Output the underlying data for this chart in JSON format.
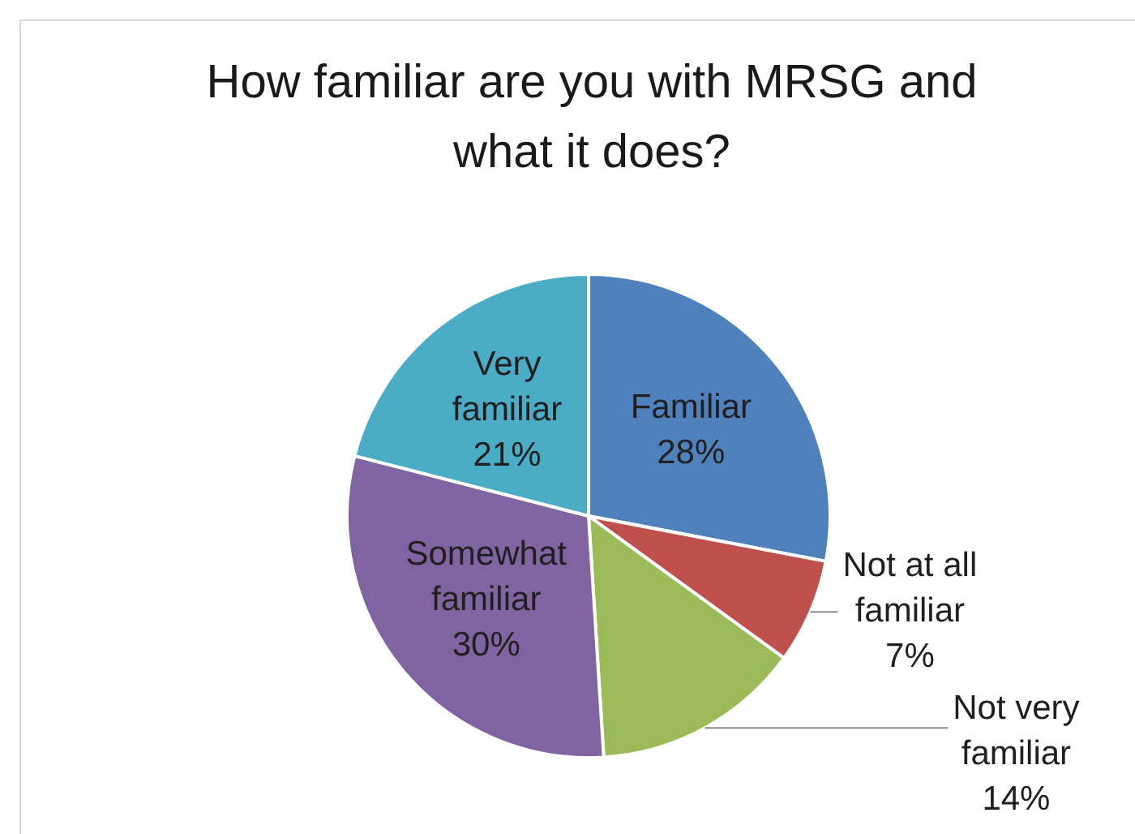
{
  "chart_data": {
    "type": "pie",
    "title": "How familiar are you with MRSG and what it does?",
    "categories": [
      "Familiar",
      "Not at all familiar",
      "Not very familiar",
      "Somewhat familiar",
      "Very familiar"
    ],
    "values": [
      28,
      7,
      14,
      30,
      21
    ],
    "colors": [
      "#4f81bd",
      "#c0504d",
      "#9bbb59",
      "#8064a2",
      "#4bacc6"
    ],
    "value_labels": [
      "28%",
      "7%",
      "14%",
      "30%",
      "21%"
    ],
    "legend": false
  }
}
